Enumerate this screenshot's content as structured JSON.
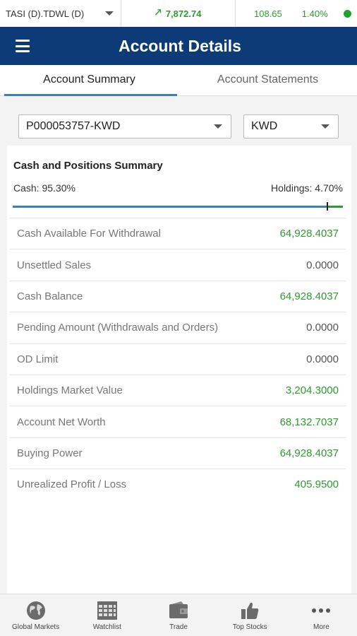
{
  "ticker": {
    "symbol": "TASI (D).TDWL (D)",
    "index_value": "7,872.74",
    "change": "108.65",
    "change_pct": "1.40%",
    "status_color": "#1fa32e"
  },
  "header": {
    "title": "Account Details"
  },
  "tabs": [
    {
      "label": "Account Summary",
      "active": true
    },
    {
      "label": "Account Statements",
      "active": false
    }
  ],
  "account_select": {
    "value": "P000053757-KWD"
  },
  "currency_select": {
    "value": "KWD"
  },
  "summary": {
    "heading": "Cash and Positions Summary",
    "cash_label": "Cash: 95.30%",
    "holdings_label": "Holdings: 4.70%",
    "cash_fraction": 0.953,
    "rows": [
      {
        "label": "Cash Available For Withdrawal",
        "value": "64,928.4037",
        "positive": true
      },
      {
        "label": "Unsettled Sales",
        "value": "0.0000",
        "positive": false
      },
      {
        "label": "Cash Balance",
        "value": "64,928.4037",
        "positive": true
      },
      {
        "label": "Pending Amount (Withdrawals and Orders)",
        "value": "0.0000",
        "positive": false
      },
      {
        "label": "OD Limit",
        "value": "0.0000",
        "positive": false
      },
      {
        "label": "Holdings Market Value",
        "value": "3,204.3000",
        "positive": true
      },
      {
        "label": "Account Net Worth",
        "value": "68,132.7037",
        "positive": true
      },
      {
        "label": "Buying Power",
        "value": "64,928.4037",
        "positive": true
      },
      {
        "label": "Unrealized Profit / Loss",
        "value": "405.9500",
        "positive": true
      }
    ]
  },
  "bottom_nav": [
    {
      "label": "Global Markets",
      "icon": "globe-icon"
    },
    {
      "label": "Watchlist",
      "icon": "watchlist-icon"
    },
    {
      "label": "Trade",
      "icon": "wallet-icon"
    },
    {
      "label": "Top Stocks",
      "icon": "thumbs-up-icon"
    },
    {
      "label": "More",
      "icon": "more-dots-icon"
    }
  ],
  "colors": {
    "header": "#0d3b78",
    "positive": "#2e9b2e",
    "cash_bar": "#3a7fc1"
  }
}
